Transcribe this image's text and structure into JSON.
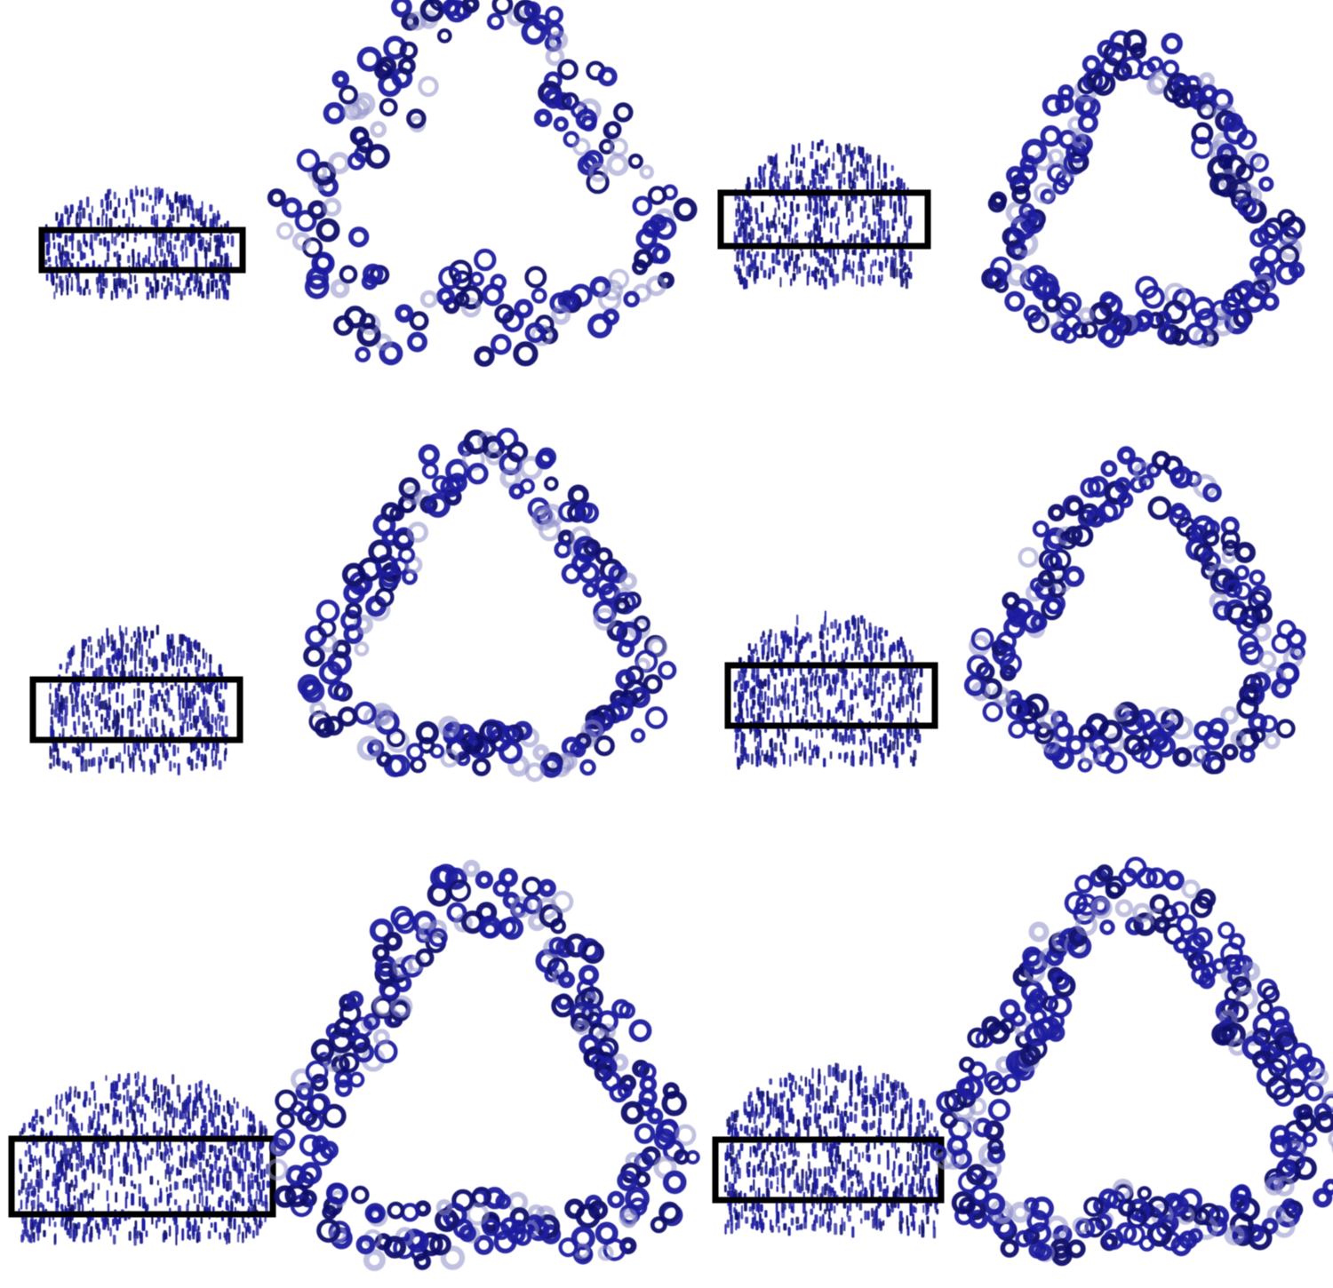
{
  "figure": {
    "rows": [
      {
        "side_view": {
          "name": "side-view-row-1-a"
        },
        "top_view": {
          "name": "top-view-row-1-a"
        },
        "side_view_b": {
          "name": "side-view-row-1-b"
        },
        "top_view_b": {
          "name": "top-view-row-1-b"
        }
      },
      {
        "side_view": {
          "name": "side-view-row-2-a"
        },
        "top_view": {
          "name": "top-view-row-2-a"
        },
        "side_view_b": {
          "name": "side-view-row-2-b"
        },
        "top_view_b": {
          "name": "top-view-row-2-b"
        }
      },
      {
        "side_view": {
          "name": "side-view-row-3-a"
        },
        "top_view": {
          "name": "top-view-row-3-a"
        },
        "side_view_b": {
          "name": "side-view-row-3-b"
        },
        "top_view_b": {
          "name": "top-view-row-3-b"
        }
      }
    ],
    "colors": {
      "structure": "#1f1f9e",
      "structure_dark": "#12126b",
      "structure_faded": "#8c8cc8",
      "box": "#000000",
      "background": "#ffffff"
    }
  }
}
